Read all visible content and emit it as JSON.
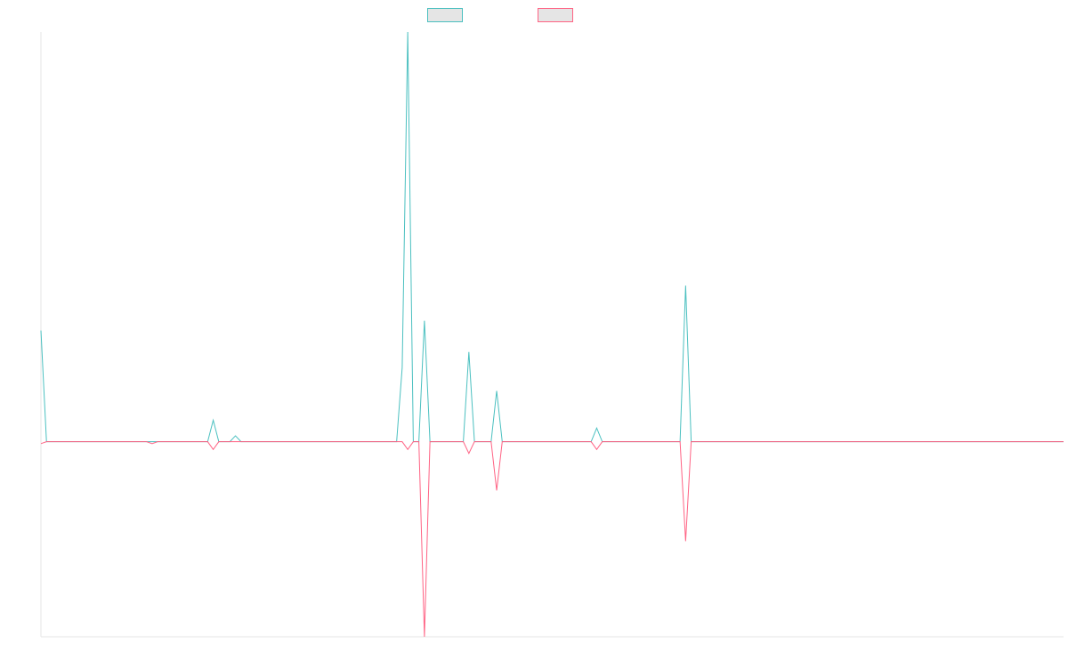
{
  "colors": {
    "series_1": "#4bc0c0",
    "series_2": "#ff6384",
    "axis": "#e5e5e5"
  },
  "chart_data": {
    "type": "line",
    "title": "",
    "xlabel": "",
    "ylabel": "",
    "x": [
      0,
      1,
      2,
      3,
      4,
      5,
      6,
      7,
      8,
      9,
      10,
      11,
      12,
      13,
      14,
      15,
      16,
      17,
      18,
      19,
      20,
      21,
      22,
      23,
      24,
      25,
      26,
      27,
      28,
      29,
      30,
      31,
      32,
      33,
      34,
      35,
      36,
      37,
      38,
      39,
      40,
      41,
      42,
      43,
      44,
      45,
      46,
      47,
      48,
      49,
      50,
      51,
      52,
      53,
      54,
      55,
      56,
      57,
      58,
      59,
      60,
      61,
      62,
      63,
      64,
      65,
      66,
      67,
      68,
      69,
      70,
      71,
      72,
      73,
      74,
      75,
      76,
      77,
      78,
      79,
      80,
      81,
      82,
      83,
      84,
      85,
      86,
      87,
      88,
      89,
      90,
      91,
      92,
      93,
      94,
      95,
      96,
      97,
      98,
      99,
      100,
      101,
      102,
      103,
      104,
      105,
      106,
      107,
      108,
      109,
      110,
      111,
      112,
      113,
      114,
      115,
      116,
      117,
      118,
      119,
      120,
      121,
      122,
      123,
      124,
      125,
      126,
      127,
      128,
      129,
      130,
      131,
      132,
      133,
      134,
      135,
      136,
      137,
      138,
      139,
      140,
      141,
      142,
      143,
      144,
      145,
      146,
      147,
      148,
      149,
      150,
      151,
      152,
      153,
      154,
      155,
      156,
      157,
      158,
      159,
      160,
      161,
      162,
      163,
      164,
      165,
      166,
      167,
      168,
      169,
      170,
      171,
      172,
      173,
      174,
      175,
      176,
      177,
      178,
      179,
      180,
      181,
      182,
      183,
      184
    ],
    "series": [
      {
        "name": "",
        "color": "#4bc0c0",
        "values": [
          57,
          0,
          0,
          0,
          0,
          0,
          0,
          0,
          0,
          0,
          0,
          0,
          0,
          0,
          0,
          0,
          0,
          0,
          0,
          0,
          0,
          0,
          0,
          0,
          0,
          0,
          0,
          0,
          0,
          0,
          0,
          11,
          0,
          0,
          0,
          3,
          0,
          0,
          0,
          0,
          0,
          0,
          0,
          0,
          0,
          0,
          0,
          0,
          0,
          0,
          0,
          0,
          0,
          0,
          0,
          0,
          0,
          0,
          0,
          0,
          0,
          0,
          0,
          0,
          0,
          38,
          210,
          0,
          0,
          62,
          0,
          0,
          0,
          0,
          0,
          0,
          0,
          46,
          0,
          0,
          0,
          0,
          26,
          0,
          0,
          0,
          0,
          0,
          0,
          0,
          0,
          0,
          0,
          0,
          0,
          0,
          0,
          0,
          0,
          0,
          7,
          0,
          0,
          0,
          0,
          0,
          0,
          0,
          0,
          0,
          0,
          0,
          0,
          0,
          0,
          0,
          80,
          0,
          0,
          0,
          0,
          0,
          0,
          0,
          0,
          0,
          0,
          0,
          0,
          0,
          0,
          0,
          0,
          0,
          0,
          0,
          0,
          0,
          0,
          0,
          0,
          0,
          0,
          0,
          0,
          0,
          0,
          0,
          0,
          0,
          0,
          0,
          0,
          0,
          0,
          0,
          0,
          0,
          0,
          0,
          0,
          0,
          0,
          0,
          0,
          0,
          0,
          0,
          0,
          0,
          0,
          0,
          0,
          0,
          0,
          0,
          0,
          0,
          0,
          0,
          0,
          0,
          0,
          0,
          0
        ]
      },
      {
        "name": "",
        "color": "#ff6384",
        "values": [
          -1,
          0,
          0,
          0,
          0,
          0,
          0,
          0,
          0,
          0,
          0,
          0,
          0,
          0,
          0,
          0,
          0,
          0,
          0,
          0,
          -1,
          0,
          0,
          0,
          0,
          0,
          0,
          0,
          0,
          0,
          0,
          -4,
          0,
          0,
          0,
          0,
          0,
          0,
          0,
          0,
          0,
          0,
          0,
          0,
          0,
          0,
          0,
          0,
          0,
          0,
          0,
          0,
          0,
          0,
          0,
          0,
          0,
          0,
          0,
          0,
          0,
          0,
          0,
          0,
          0,
          0,
          -4,
          0,
          0,
          -100,
          0,
          0,
          0,
          0,
          0,
          0,
          0,
          -6,
          0,
          0,
          0,
          0,
          -25,
          0,
          0,
          0,
          0,
          0,
          0,
          0,
          0,
          0,
          0,
          0,
          0,
          0,
          0,
          0,
          0,
          0,
          -4,
          0,
          0,
          0,
          0,
          0,
          0,
          0,
          0,
          0,
          0,
          0,
          0,
          0,
          0,
          0,
          -51,
          0,
          0,
          0,
          0,
          0,
          0,
          0,
          0,
          0,
          0,
          0,
          0,
          0,
          0,
          0,
          0,
          0,
          0,
          0,
          0,
          0,
          0,
          0,
          0,
          0,
          0,
          0,
          0,
          0,
          0,
          0,
          0,
          0,
          0,
          0,
          0,
          0,
          0,
          0,
          0,
          0,
          0,
          0,
          0,
          0,
          0,
          0,
          0,
          0,
          0,
          0,
          0,
          0,
          0,
          0,
          0,
          0,
          0,
          0,
          0,
          0,
          0,
          0,
          0,
          0,
          0,
          0,
          0
        ]
      }
    ],
    "xlim": [
      0,
      184
    ],
    "ylim": [
      -100,
      210
    ],
    "grid": false,
    "legend": "top-center"
  }
}
